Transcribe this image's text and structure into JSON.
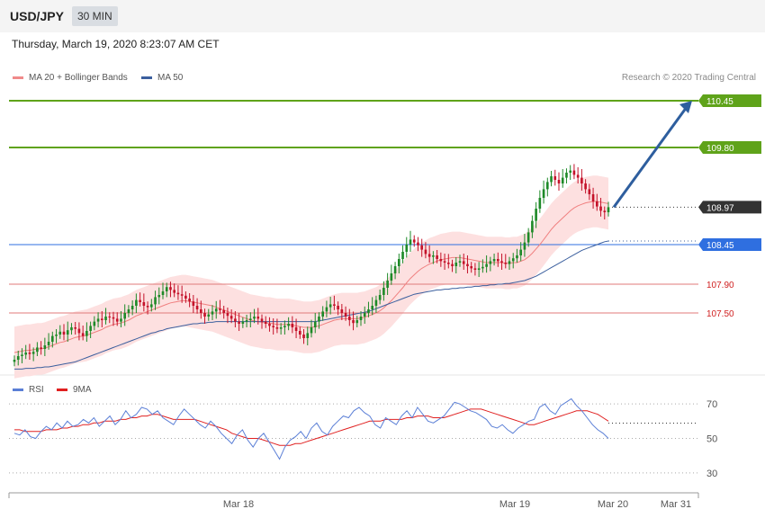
{
  "header": {
    "pair": "USD/JPY",
    "timeframe": "30 MIN",
    "timestamp": "Thursday, March 19, 2020 8:23:07 AM CET"
  },
  "legend_main": [
    {
      "label": "MA 20 + Bollinger Bands",
      "color": "#f08a8a"
    },
    {
      "label": "MA 50",
      "color": "#3b5f9e"
    }
  ],
  "legend_rsi": [
    {
      "label": "RSI",
      "color": "#5b7fd6"
    },
    {
      "label": "9MA",
      "color": "#e02020"
    }
  ],
  "copyright": "Research © 2020 Trading Central",
  "colors": {
    "up_candle": "#1e8a28",
    "down_candle": "#c4122a",
    "band_fill": "#fde0e0",
    "ma20": "#f08080",
    "ma50": "#3b5f9e",
    "resistance": "#5fa31a",
    "pivot": "#2f6fe0",
    "support": "#e07a7a",
    "arrow": "#2e5e9e",
    "last_price": "#333333",
    "rsi": "#5b7fd6",
    "rsi_ma": "#e02020"
  },
  "chart_data": [
    {
      "type": "candlestick",
      "title": "USD/JPY 30 MIN",
      "ylim": [
        106.65,
        110.65
      ],
      "x_ticks": [
        "Mar 18",
        "Mar 19",
        "Mar 20",
        "Mar 31"
      ],
      "horizontal_levels": [
        {
          "value": 110.45,
          "label": "110.45",
          "kind": "resistance"
        },
        {
          "value": 109.8,
          "label": "109.80",
          "kind": "resistance"
        },
        {
          "value": 108.97,
          "label": "108.97",
          "kind": "last_price"
        },
        {
          "value": 108.45,
          "label": "108.45",
          "kind": "pivot"
        },
        {
          "value": 107.9,
          "label": "107.90",
          "kind": "support"
        },
        {
          "value": 107.5,
          "label": "107.50",
          "kind": "support"
        }
      ],
      "arrow": {
        "from": 108.97,
        "to": 110.45,
        "direction": "up"
      },
      "closes": [
        106.85,
        106.9,
        106.92,
        106.95,
        106.93,
        106.96,
        107.02,
        107.0,
        107.05,
        107.1,
        107.18,
        107.2,
        107.24,
        107.2,
        107.26,
        107.3,
        107.28,
        107.22,
        107.18,
        107.25,
        107.32,
        107.38,
        107.42,
        107.4,
        107.45,
        107.44,
        107.42,
        107.38,
        107.42,
        107.5,
        107.55,
        107.6,
        107.68,
        107.65,
        107.6,
        107.58,
        107.62,
        107.72,
        107.75,
        107.8,
        107.86,
        107.82,
        107.78,
        107.76,
        107.74,
        107.7,
        107.66,
        107.6,
        107.55,
        107.5,
        107.45,
        107.48,
        107.52,
        107.56,
        107.54,
        107.5,
        107.46,
        107.42,
        107.38,
        107.35,
        107.38,
        107.4,
        107.42,
        107.45,
        107.42,
        107.38,
        107.35,
        107.32,
        107.3,
        107.28,
        107.3,
        107.32,
        107.35,
        107.3,
        107.25,
        107.2,
        107.15,
        107.22,
        107.3,
        107.38,
        107.45,
        107.52,
        107.58,
        107.62,
        107.6,
        107.55,
        107.5,
        107.45,
        107.4,
        107.36,
        107.4,
        107.45,
        107.5,
        107.55,
        107.6,
        107.68,
        107.75,
        107.85,
        107.95,
        108.05,
        108.15,
        108.25,
        108.35,
        108.45,
        108.52,
        108.48,
        108.44,
        108.38,
        108.32,
        108.28,
        108.3,
        108.25,
        108.22,
        108.2,
        108.18,
        108.15,
        108.2,
        108.22,
        108.18,
        108.15,
        108.12,
        108.1,
        108.12,
        108.14,
        108.18,
        108.22,
        108.25,
        108.22,
        108.2,
        108.18,
        108.22,
        108.26,
        108.3,
        108.38,
        108.48,
        108.62,
        108.78,
        108.95,
        109.1,
        109.22,
        109.32,
        109.4,
        109.35,
        109.3,
        109.38,
        109.45,
        109.48,
        109.42,
        109.38,
        109.3,
        109.22,
        109.15,
        109.05,
        108.98,
        108.92,
        108.9,
        108.97
      ],
      "ma20": [
        106.95,
        106.96,
        106.97,
        106.98,
        106.98,
        106.99,
        107.0,
        107.0,
        107.01,
        107.03,
        107.05,
        107.07,
        107.09,
        107.1,
        107.12,
        107.14,
        107.16,
        107.17,
        107.18,
        107.19,
        107.21,
        107.23,
        107.25,
        107.27,
        107.3,
        107.32,
        107.34,
        107.35,
        107.36,
        107.38,
        107.4,
        107.43,
        107.46,
        107.48,
        107.5,
        107.52,
        107.54,
        107.56,
        107.58,
        107.6,
        107.62,
        107.64,
        107.65,
        107.66,
        107.67,
        107.67,
        107.66,
        107.65,
        107.64,
        107.63,
        107.62,
        107.61,
        107.6,
        107.58,
        107.56,
        107.54,
        107.52,
        107.5,
        107.48,
        107.46,
        107.44,
        107.42,
        107.4,
        107.39,
        107.38,
        107.37,
        107.36,
        107.36,
        107.35,
        107.34,
        107.34,
        107.34,
        107.34,
        107.33,
        107.32,
        107.31,
        107.3,
        107.3,
        107.3,
        107.31,
        107.32,
        107.34,
        107.36,
        107.38,
        107.4,
        107.41,
        107.42,
        107.42,
        107.42,
        107.42,
        107.42,
        107.43,
        107.44,
        107.46,
        107.48,
        107.5,
        107.53,
        107.57,
        107.62,
        107.67,
        107.73,
        107.79,
        107.85,
        107.92,
        107.98,
        108.03,
        108.08,
        108.12,
        108.15,
        108.18,
        108.2,
        108.22,
        108.24,
        108.25,
        108.26,
        108.27,
        108.27,
        108.27,
        108.26,
        108.25,
        108.24,
        108.23,
        108.22,
        108.21,
        108.2,
        108.2,
        108.2,
        108.2,
        108.2,
        108.19,
        108.19,
        108.2,
        108.2,
        108.22,
        108.24,
        108.28,
        108.33,
        108.39,
        108.45,
        108.52,
        108.59,
        108.66,
        108.72,
        108.77,
        108.82,
        108.87,
        108.92,
        108.96,
        108.99,
        109.01,
        109.03,
        109.04,
        109.05,
        109.05,
        109.04,
        109.03,
        109.02
      ],
      "bb_width": 0.36,
      "ma50": [
        106.72,
        106.72,
        106.72,
        106.73,
        106.73,
        106.73,
        106.74,
        106.74,
        106.75,
        106.75,
        106.76,
        106.77,
        106.78,
        106.79,
        106.8,
        106.81,
        106.82,
        106.84,
        106.86,
        106.88,
        106.9,
        106.92,
        106.94,
        106.96,
        106.98,
        107.0,
        107.02,
        107.04,
        107.06,
        107.08,
        107.1,
        107.12,
        107.14,
        107.16,
        107.18,
        107.2,
        107.22,
        107.23,
        107.25,
        107.26,
        107.28,
        107.29,
        107.3,
        107.31,
        107.32,
        107.33,
        107.34,
        107.35,
        107.35,
        107.36,
        107.36,
        107.37,
        107.37,
        107.38,
        107.38,
        107.38,
        107.38,
        107.38,
        107.38,
        107.38,
        107.38,
        107.38,
        107.38,
        107.38,
        107.38,
        107.38,
        107.38,
        107.38,
        107.38,
        107.38,
        107.38,
        107.38,
        107.38,
        107.38,
        107.38,
        107.38,
        107.38,
        107.38,
        107.38,
        107.38,
        107.39,
        107.4,
        107.41,
        107.42,
        107.43,
        107.44,
        107.45,
        107.46,
        107.47,
        107.48,
        107.49,
        107.5,
        107.51,
        107.52,
        107.54,
        107.56,
        107.58,
        107.6,
        107.62,
        107.64,
        107.66,
        107.68,
        107.7,
        107.72,
        107.74,
        107.76,
        107.77,
        107.78,
        107.79,
        107.8,
        107.81,
        107.82,
        107.82,
        107.83,
        107.83,
        107.84,
        107.84,
        107.85,
        107.85,
        107.86,
        107.86,
        107.87,
        107.87,
        107.88,
        107.88,
        107.89,
        107.89,
        107.9,
        107.9,
        107.91,
        107.91,
        107.92,
        107.93,
        107.94,
        107.95,
        107.97,
        107.99,
        108.01,
        108.04,
        108.07,
        108.1,
        108.13,
        108.16,
        108.19,
        108.22,
        108.25,
        108.28,
        108.31,
        108.34,
        108.37,
        108.39,
        108.41,
        108.43,
        108.45,
        108.47,
        108.49,
        108.5
      ]
    },
    {
      "type": "line",
      "title": "RSI",
      "ylim": [
        20,
        80
      ],
      "y_ticks": [
        70,
        50,
        30
      ],
      "series": [
        {
          "name": "RSI",
          "values": [
            53,
            52,
            55,
            51,
            50,
            54,
            57,
            55,
            59,
            56,
            60,
            57,
            58,
            61,
            59,
            62,
            57,
            60,
            63,
            58,
            61,
            66,
            62,
            64,
            68,
            67,
            64,
            66,
            62,
            60,
            58,
            63,
            67,
            64,
            61,
            58,
            56,
            60,
            57,
            53,
            50,
            47,
            52,
            55,
            49,
            45,
            50,
            53,
            48,
            43,
            38,
            45,
            49,
            51,
            54,
            50,
            56,
            59,
            54,
            52,
            57,
            60,
            63,
            62,
            66,
            68,
            65,
            63,
            58,
            56,
            62,
            60,
            58,
            63,
            66,
            62,
            68,
            64,
            60,
            59,
            61,
            63,
            67,
            71,
            70,
            68,
            66,
            65,
            63,
            61,
            57,
            56,
            58,
            55,
            53,
            56,
            58,
            60,
            61,
            68,
            70,
            66,
            64,
            69,
            71,
            73,
            69,
            66,
            62,
            58,
            55,
            53,
            50
          ],
          "values_note": ""
        },
        {
          "name": "9MA",
          "values": [
            55,
            55,
            54,
            54,
            54,
            54,
            55,
            55,
            55,
            56,
            56,
            57,
            57,
            58,
            58,
            59,
            59,
            60,
            60,
            60,
            61,
            61,
            62,
            62,
            63,
            63,
            64,
            64,
            63,
            62,
            61,
            61,
            61,
            61,
            61,
            60,
            59,
            58,
            57,
            56,
            55,
            53,
            52,
            51,
            50,
            50,
            50,
            49,
            48,
            47,
            46,
            46,
            46,
            47,
            47,
            48,
            49,
            50,
            51,
            52,
            53,
            54,
            55,
            56,
            57,
            58,
            59,
            60,
            60,
            60,
            61,
            61,
            61,
            61,
            62,
            62,
            63,
            63,
            63,
            62,
            62,
            62,
            63,
            64,
            65,
            66,
            67,
            67,
            67,
            66,
            65,
            64,
            63,
            62,
            61,
            60,
            59,
            58,
            58,
            59,
            60,
            61,
            62,
            63,
            64,
            65,
            66,
            66,
            66,
            65,
            64,
            62,
            60
          ]
        }
      ]
    }
  ],
  "axes": {
    "rsi_ticks": [
      "70",
      "50",
      "30"
    ]
  }
}
